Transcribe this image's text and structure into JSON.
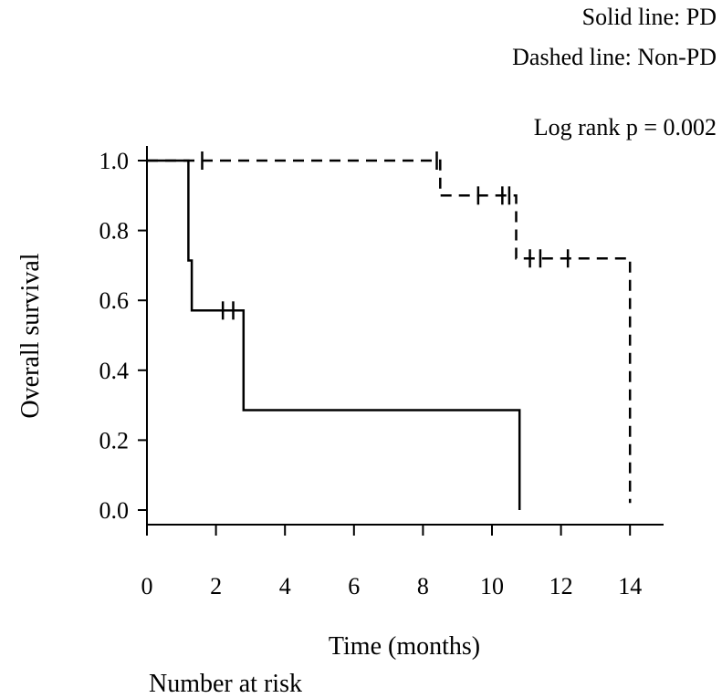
{
  "legend": {
    "solid": "Solid line: PD",
    "dashed": "Dashed line: Non-PD"
  },
  "annotation": "Log rank p = 0.002",
  "footer": {
    "number_at_risk": "Number at risk"
  },
  "chart_data": {
    "type": "line",
    "title": "",
    "xlabel": "Time (months)",
    "ylabel": "Overall survival",
    "xlim": [
      0,
      15
    ],
    "ylim": [
      0,
      1
    ],
    "xticks": [
      0,
      2,
      4,
      6,
      8,
      10,
      12,
      14
    ],
    "yticks": [
      0.0,
      0.2,
      0.4,
      0.6,
      0.8,
      1.0
    ],
    "ytick_labels": [
      "0.0",
      "0.2",
      "0.4",
      "0.6",
      "0.8",
      "1.0"
    ],
    "grid": false,
    "legend_position": "top-right",
    "step": true,
    "series": [
      {
        "name": "PD",
        "line_style": "solid",
        "color": "#000000",
        "steps": [
          [
            0,
            1.0
          ],
          [
            1.2,
            1.0
          ],
          [
            1.2,
            0.714
          ],
          [
            1.3,
            0.714
          ],
          [
            1.3,
            0.571
          ],
          [
            2.8,
            0.571
          ],
          [
            2.8,
            0.286
          ],
          [
            10.8,
            0.286
          ],
          [
            10.8,
            0.0
          ]
        ],
        "censored": [
          [
            1.6,
            1.0
          ],
          [
            2.2,
            0.571
          ],
          [
            2.5,
            0.571
          ]
        ]
      },
      {
        "name": "Non-PD",
        "line_style": "dashed",
        "color": "#000000",
        "steps": [
          [
            0,
            1.0
          ],
          [
            8.5,
            1.0
          ],
          [
            8.5,
            0.9
          ],
          [
            10.7,
            0.9
          ],
          [
            10.7,
            0.72
          ],
          [
            14.0,
            0.72
          ],
          [
            14.0,
            0.02
          ]
        ],
        "censored": [
          [
            8.4,
            1.0
          ],
          [
            9.6,
            0.9
          ],
          [
            10.3,
            0.9
          ],
          [
            10.5,
            0.9
          ],
          [
            11.1,
            0.72
          ],
          [
            11.4,
            0.72
          ],
          [
            12.2,
            0.72
          ]
        ]
      }
    ]
  }
}
